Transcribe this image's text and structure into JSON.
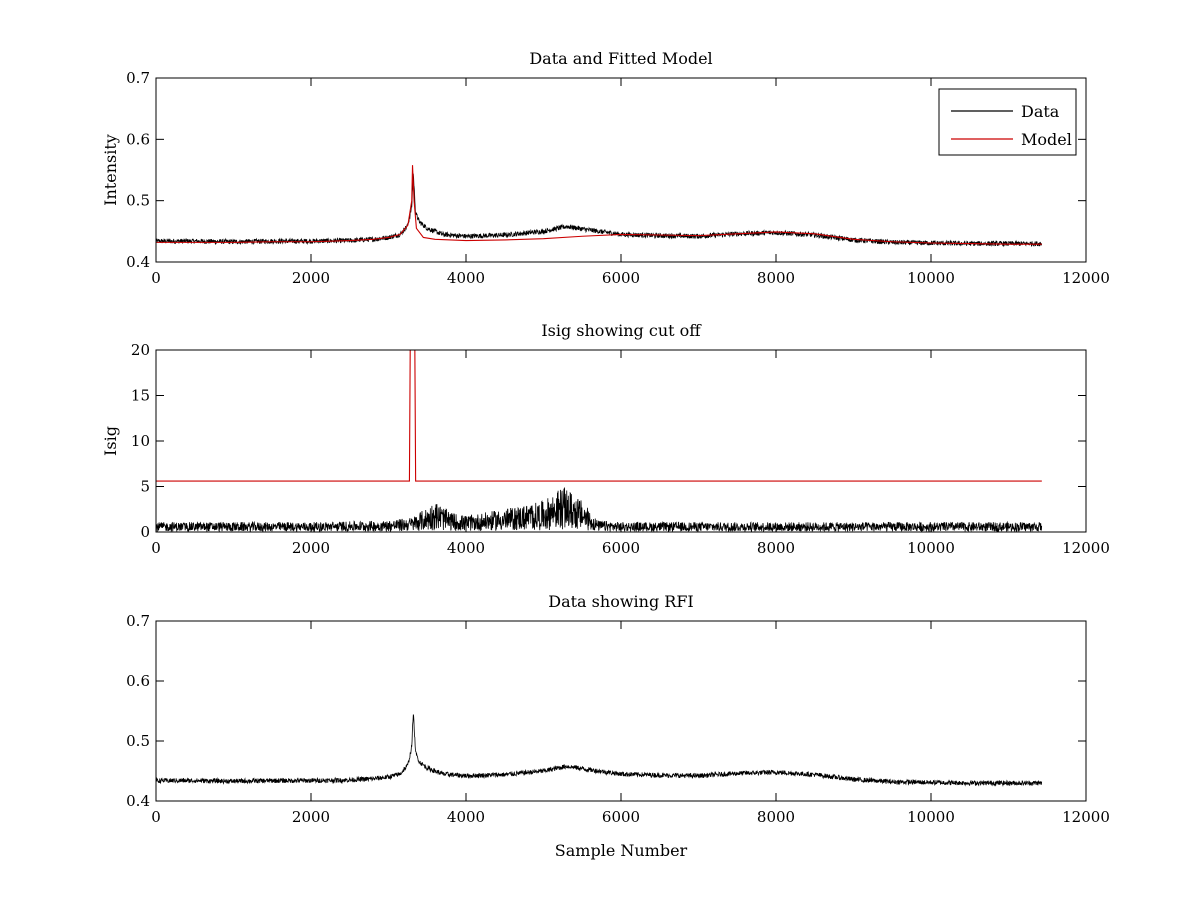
{
  "figure": {
    "background": "#ffffff",
    "colors": {
      "data": "#000000",
      "model": "#cc0000",
      "axis": "#000000"
    }
  },
  "chart_data": [
    {
      "type": "line",
      "title": "Data and Fitted Model",
      "xlabel": "",
      "ylabel": "Intensity",
      "xlim": [
        0,
        12000
      ],
      "ylim": [
        0.4,
        0.7
      ],
      "xticks": [
        0,
        2000,
        4000,
        6000,
        8000,
        10000,
        12000
      ],
      "yticks": [
        0.4,
        0.5,
        0.6,
        0.7
      ],
      "xtick_labels": [
        "0",
        "2000",
        "4000",
        "6000",
        "8000",
        "10000",
        "12000"
      ],
      "ytick_labels": [
        "0.4",
        "0.5",
        "0.6",
        "0.7"
      ],
      "legend": {
        "position": "top-right",
        "entries": [
          "Data",
          "Model"
        ]
      },
      "series": [
        {
          "name": "Data",
          "color": "#000000",
          "x": [
            0,
            500,
            1000,
            1500,
            2000,
            2500,
            2800,
            3000,
            3150,
            3250,
            3300,
            3320,
            3350,
            3400,
            3500,
            3700,
            4000,
            4500,
            5000,
            5300,
            5600,
            6000,
            6500,
            7000,
            7500,
            8000,
            8500,
            9000,
            9500,
            10000,
            10500,
            11000,
            11430
          ],
          "y": [
            0.434,
            0.434,
            0.433,
            0.434,
            0.434,
            0.435,
            0.437,
            0.44,
            0.445,
            0.46,
            0.49,
            0.545,
            0.48,
            0.465,
            0.455,
            0.445,
            0.442,
            0.444,
            0.45,
            0.458,
            0.452,
            0.445,
            0.443,
            0.442,
            0.446,
            0.448,
            0.444,
            0.436,
            0.432,
            0.431,
            0.43,
            0.43,
            0.43
          ],
          "noise": 0.004
        },
        {
          "name": "Model",
          "color": "#cc0000",
          "x": [
            0,
            500,
            1000,
            1500,
            2000,
            2500,
            2800,
            3000,
            3150,
            3250,
            3300,
            3310,
            3330,
            3360,
            3450,
            3600,
            4000,
            4500,
            5000,
            5500,
            6000,
            6500,
            7000,
            7500,
            8000,
            8500,
            9000,
            9500,
            10000,
            10500,
            11000,
            11430
          ],
          "y": [
            0.432,
            0.432,
            0.432,
            0.433,
            0.433,
            0.435,
            0.437,
            0.44,
            0.445,
            0.46,
            0.5,
            0.558,
            0.5,
            0.455,
            0.44,
            0.437,
            0.435,
            0.436,
            0.438,
            0.442,
            0.445,
            0.444,
            0.443,
            0.446,
            0.449,
            0.446,
            0.437,
            0.433,
            0.431,
            0.43,
            0.429,
            0.429
          ]
        }
      ]
    },
    {
      "type": "line",
      "title": "Isig showing cut off",
      "xlabel": "",
      "ylabel": "Isig",
      "xlim": [
        0,
        12000
      ],
      "ylim": [
        0,
        20
      ],
      "xticks": [
        0,
        2000,
        4000,
        6000,
        8000,
        10000,
        12000
      ],
      "yticks": [
        0,
        5,
        10,
        15,
        20
      ],
      "xtick_labels": [
        "0",
        "2000",
        "4000",
        "6000",
        "8000",
        "10000",
        "12000"
      ],
      "ytick_labels": [
        "0",
        "5",
        "10",
        "15",
        "20"
      ],
      "series": [
        {
          "color": "#000000",
          "x": [
            0,
            2000,
            3000,
            3300,
            3500,
            3600,
            3800,
            4000,
            4500,
            5000,
            5250,
            5500,
            5700,
            6000,
            7000,
            8000,
            9000,
            10000,
            11000,
            11430
          ],
          "y": [
            0.6,
            0.6,
            0.7,
            0.9,
            1.5,
            1.9,
            1.2,
            1.0,
            1.4,
            1.9,
            2.8,
            1.9,
            0.7,
            0.6,
            0.6,
            0.6,
            0.6,
            0.6,
            0.6,
            0.6
          ],
          "noise": 1.3
        },
        {
          "color": "#cc0000",
          "x": [
            0,
            3270,
            3280,
            3290,
            3340,
            3350,
            11430
          ],
          "y": [
            5.6,
            5.6,
            20,
            20,
            20,
            5.6,
            5.6
          ]
        }
      ]
    },
    {
      "type": "line",
      "title": "Data showing RFI",
      "xlabel": "Sample Number",
      "ylabel": "",
      "xlim": [
        0,
        12000
      ],
      "ylim": [
        0.4,
        0.7
      ],
      "xticks": [
        0,
        2000,
        4000,
        6000,
        8000,
        10000,
        12000
      ],
      "yticks": [
        0.4,
        0.5,
        0.6,
        0.7
      ],
      "xtick_labels": [
        "0",
        "2000",
        "4000",
        "6000",
        "8000",
        "10000",
        "12000"
      ],
      "ytick_labels": [
        "0.4",
        "0.5",
        "0.6",
        "0.7"
      ],
      "series": [
        {
          "color": "#000000",
          "x": [
            0,
            500,
            1000,
            1500,
            2000,
            2500,
            2800,
            3000,
            3150,
            3250,
            3300,
            3320,
            3350,
            3400,
            3500,
            3700,
            4000,
            4500,
            5000,
            5300,
            5600,
            6000,
            6500,
            7000,
            7500,
            8000,
            8500,
            9000,
            9500,
            10000,
            10500,
            11000,
            11430
          ],
          "y": [
            0.434,
            0.434,
            0.433,
            0.434,
            0.434,
            0.435,
            0.437,
            0.44,
            0.445,
            0.46,
            0.49,
            0.548,
            0.48,
            0.465,
            0.455,
            0.445,
            0.442,
            0.444,
            0.45,
            0.458,
            0.452,
            0.445,
            0.443,
            0.442,
            0.446,
            0.448,
            0.444,
            0.436,
            0.432,
            0.431,
            0.43,
            0.43,
            0.43
          ],
          "noise": 0.004
        }
      ]
    }
  ]
}
